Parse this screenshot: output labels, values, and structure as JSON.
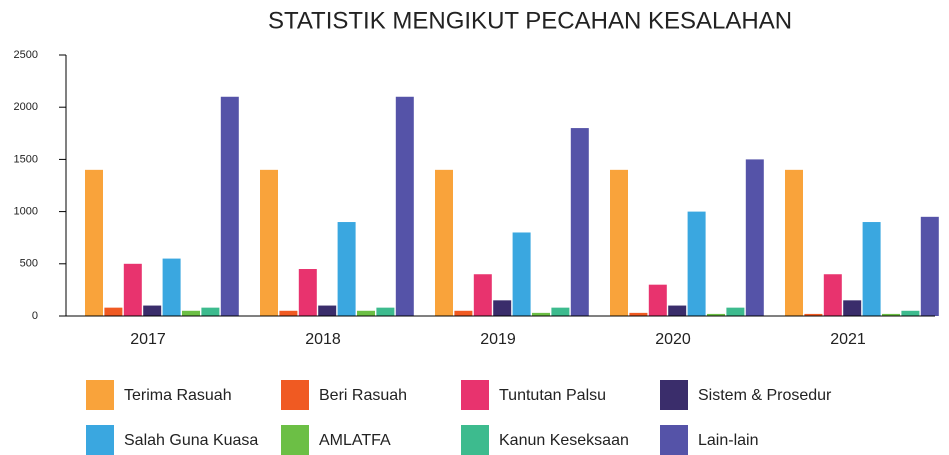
{
  "chart_data": {
    "type": "bar",
    "title": "STATISTIK MENGIKUT PECAHAN KESALAHAN",
    "categories": [
      "2017",
      "2018",
      "2019",
      "2020",
      "2021"
    ],
    "series": [
      {
        "name": "Terima Rasuah",
        "color": "#f9a33b",
        "values": [
          1400,
          1400,
          1400,
          1400,
          1400
        ]
      },
      {
        "name": "Beri Rasuah",
        "color": "#f05a22",
        "values": [
          80,
          50,
          50,
          30,
          20
        ]
      },
      {
        "name": "Tuntutan Palsu",
        "color": "#e8336e",
        "values": [
          500,
          450,
          400,
          300,
          400
        ]
      },
      {
        "name": "Sistem & Prosedur",
        "color": "#3a2d6b",
        "values": [
          100,
          100,
          150,
          100,
          150
        ]
      },
      {
        "name": "Salah Guna Kuasa",
        "color": "#3aa7e0",
        "values": [
          550,
          900,
          800,
          1000,
          900
        ]
      },
      {
        "name": "AMLATFA",
        "color": "#6cbf45",
        "values": [
          50,
          50,
          30,
          20,
          20
        ]
      },
      {
        "name": "Kanun Keseksaan",
        "color": "#3dbb8e",
        "values": [
          80,
          80,
          80,
          80,
          50
        ]
      },
      {
        "name": "Lain-lain",
        "color": "#5553a8",
        "values": [
          2100,
          2100,
          1800,
          1500,
          950
        ]
      }
    ],
    "ylim": [
      0,
      2500
    ],
    "yticks": [
      0,
      500,
      1000,
      1500,
      2000,
      2500
    ]
  }
}
